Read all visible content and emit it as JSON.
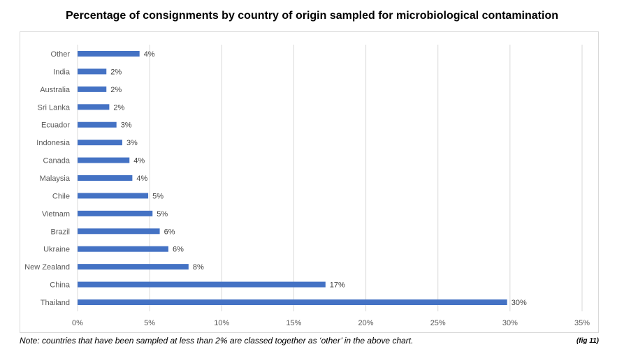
{
  "chart_data": {
    "type": "bar",
    "orientation": "horizontal",
    "title": "Percentage of consignments by country of origin sampled for microbiological contamination",
    "categories": [
      "Other",
      "India",
      "Australia",
      "Sri Lanka",
      "Ecuador",
      "Indonesia",
      "Canada",
      "Malaysia",
      "Chile",
      "Vietnam",
      "Brazil",
      "Ukraine",
      "New Zealand",
      "China",
      "Thailand"
    ],
    "values": [
      4.3,
      2.0,
      2.0,
      2.2,
      2.7,
      3.1,
      3.6,
      3.8,
      4.9,
      5.2,
      5.7,
      6.3,
      7.7,
      17.2,
      29.8
    ],
    "data_labels": [
      "4%",
      "2%",
      "2%",
      "2%",
      "3%",
      "3%",
      "4%",
      "4%",
      "5%",
      "5%",
      "6%",
      "6%",
      "8%",
      "17%",
      "30%"
    ],
    "xlim": [
      0,
      35
    ],
    "x_ticks": [
      0,
      5,
      10,
      15,
      20,
      25,
      30,
      35
    ],
    "x_tick_labels": [
      "0%",
      "5%",
      "10%",
      "15%",
      "20%",
      "25%",
      "30%",
      "35%"
    ],
    "xlabel": "",
    "ylabel": "",
    "grid": true,
    "legend": "none",
    "bar_color": "#4472c4",
    "grid_color": "#d9d9d9"
  },
  "note": "Note: countries that have been sampled at less than 2% are classed together as ‘other’ in the above chart.",
  "fig_label": "(fig 11)"
}
